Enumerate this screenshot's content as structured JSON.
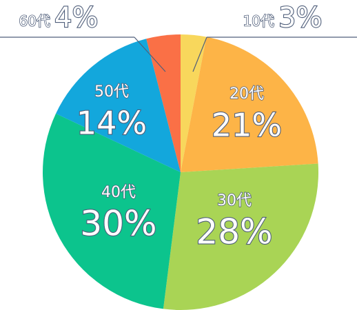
{
  "chart_data": {
    "type": "pie",
    "title": "",
    "slices": [
      {
        "category": "10代",
        "value": 3,
        "display": "3%",
        "color": "#f8d75c"
      },
      {
        "category": "20代",
        "value": 21,
        "display": "21%",
        "color": "#fdb447"
      },
      {
        "category": "30代",
        "value": 28,
        "display": "28%",
        "color": "#a9d455"
      },
      {
        "category": "40代",
        "value": 30,
        "display": "30%",
        "color": "#0cc48d"
      },
      {
        "category": "50代",
        "value": 14,
        "display": "14%",
        "color": "#13a7dc"
      },
      {
        "category": "60代",
        "value": 4,
        "display": "4%",
        "color": "#fa7046"
      }
    ],
    "start": "12 o'clock",
    "direction": "clockwise",
    "legend": "none",
    "label_text_color": "#ffffff",
    "label_outline_color": "#4f5e7a",
    "external_label_color": "#ffffff",
    "leader_line_color": "#4f5e7a"
  }
}
